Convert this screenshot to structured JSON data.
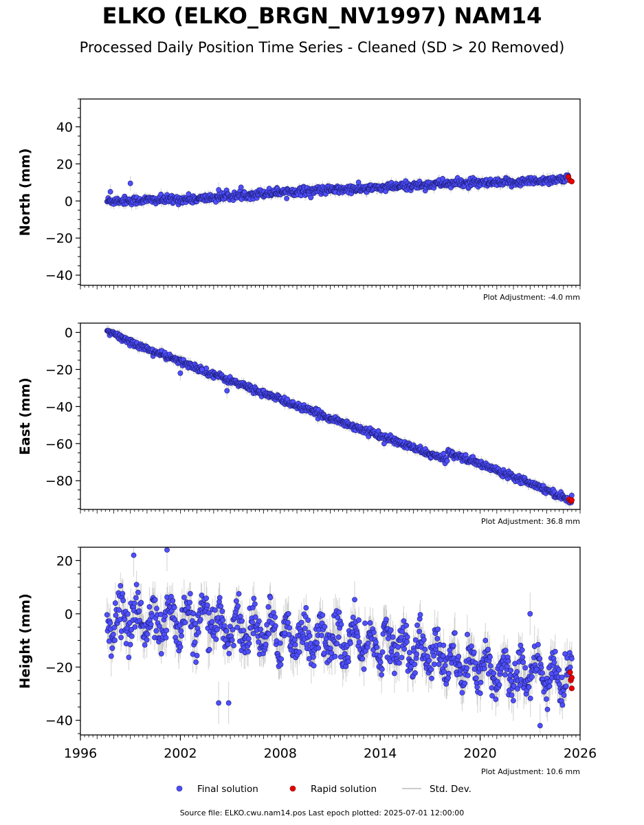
{
  "header": {
    "title": "ELKO (ELKO_BRGN_NV1997) NAM14",
    "subtitle": "Processed Daily Position Time Series - Cleaned (SD > 20 Removed)"
  },
  "footer": {
    "source": "Source file: ELKO.cwu.nam14.pos  Last epoch plotted: 2025-07-01 12:00:00"
  },
  "legend": {
    "final": "Final solution",
    "rapid": "Rapid solution",
    "std": "Std. Dev."
  },
  "colors": {
    "final": "#4f4fff",
    "rapid": "#e60000",
    "std": "#999999"
  },
  "chart_data": [
    {
      "type": "scatter",
      "ylabel": "North (mm)",
      "ylim": [
        -45.5,
        55
      ],
      "yticks": [
        -40,
        -20,
        0,
        20,
        40
      ],
      "xlim": [
        1996,
        2026
      ],
      "adjustment": "Plot Adjustment: -4.0 mm",
      "trend": [
        [
          1997.6,
          0.0
        ],
        [
          2003.0,
          1.0
        ],
        [
          2008.0,
          5.0
        ],
        [
          2013.0,
          6.5
        ],
        [
          2018.0,
          9.5
        ],
        [
          2021.0,
          9.5
        ],
        [
          2025.3,
          12.0
        ]
      ],
      "scatter_sd": 1.6,
      "outliers": [
        [
          1999.0,
          9.5
        ],
        [
          2004.3,
          6.0
        ],
        [
          1997.8,
          5.0
        ]
      ],
      "rapid": [
        [
          2025.3,
          13.0
        ],
        [
          2025.4,
          11.0
        ],
        [
          2025.5,
          10.5
        ]
      ]
    },
    {
      "type": "scatter",
      "ylabel": "East (mm)",
      "ylim": [
        -95.5,
        5
      ],
      "yticks": [
        -80,
        -60,
        -40,
        -20,
        0
      ],
      "xlim": [
        1996,
        2026
      ],
      "adjustment": "Plot Adjustment: 36.8 mm",
      "trend": [
        [
          1997.6,
          0.5
        ],
        [
          2000.0,
          -9.0
        ],
        [
          2005.0,
          -26.0
        ],
        [
          2010.0,
          -43.0
        ],
        [
          2015.0,
          -59.0
        ],
        [
          2018.0,
          -69.0
        ],
        [
          2018.05,
          -64.5
        ],
        [
          2020.0,
          -71.0
        ],
        [
          2023.0,
          -81.0
        ],
        [
          2025.5,
          -91.0
        ]
      ],
      "scatter_sd": 1.3,
      "outliers": [
        [
          2002.0,
          -22.0
        ],
        [
          2004.8,
          -31.5
        ],
        [
          2003.3,
          -20.0
        ]
      ],
      "rapid": [
        [
          2025.35,
          -90.0
        ],
        [
          2025.45,
          -91.0
        ],
        [
          2025.5,
          -90.5
        ]
      ]
    },
    {
      "type": "scatter",
      "ylabel": "Height (mm)",
      "ylim": [
        -45.5,
        25
      ],
      "yticks": [
        -40,
        -20,
        0,
        20
      ],
      "xlim": [
        1996,
        2026
      ],
      "xticks": [
        1996,
        2002,
        2008,
        2014,
        2020,
        2026
      ],
      "adjustment": "Plot Adjustment: 10.6 mm",
      "trend": [
        [
          1997.6,
          -2.0
        ],
        [
          2003.0,
          -3.0
        ],
        [
          2008.0,
          -8.0
        ],
        [
          2013.0,
          -11.0
        ],
        [
          2016.0,
          -13.0
        ],
        [
          2019.0,
          -20.0
        ],
        [
          2025.5,
          -24.0
        ]
      ],
      "scatter_sd": 7.0,
      "outliers": [
        [
          1999.2,
          22.0
        ],
        [
          2001.2,
          24.0
        ],
        [
          2004.3,
          -33.5
        ],
        [
          2004.9,
          -33.5
        ],
        [
          2023.0,
          0.0
        ],
        [
          2023.6,
          -42.0
        ]
      ],
      "rapid": [
        [
          2025.4,
          -22.0
        ],
        [
          2025.45,
          -25.0
        ],
        [
          2025.5,
          -28.0
        ],
        [
          2025.5,
          -24.0
        ]
      ]
    }
  ]
}
